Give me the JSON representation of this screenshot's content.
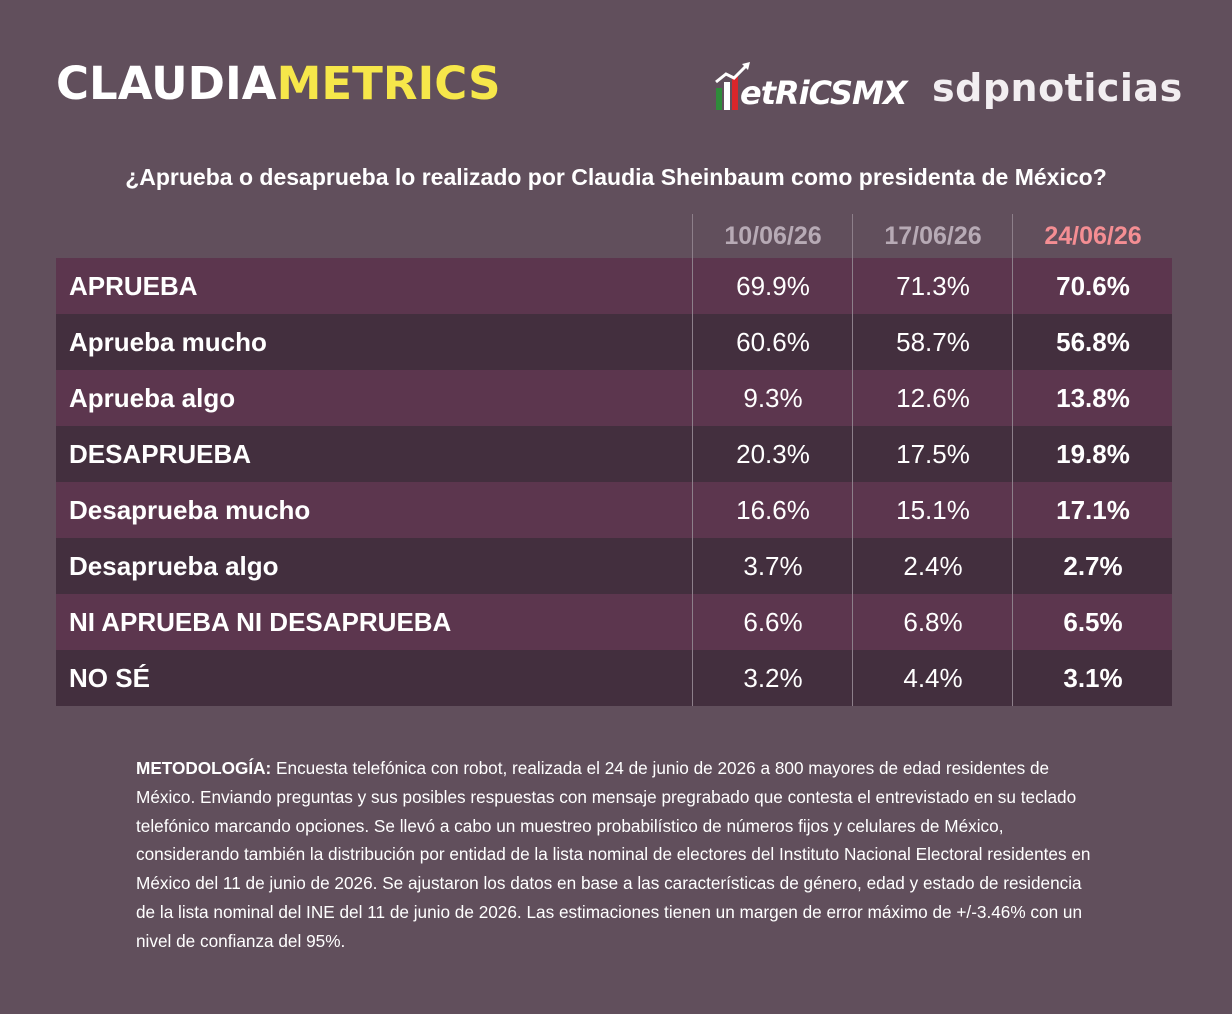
{
  "logos": {
    "claudiametrics_part1": "CLAUDIA",
    "claudiametrics_part2": "METRICS",
    "metricsmx": "etRiCSMX",
    "sdpnoticias": "sdpnoticias"
  },
  "colors": {
    "background": "#614f5c",
    "row_odd": "#5c364e",
    "row_even": "#432f3e",
    "brand_yellow": "#f6e74a",
    "latest_date": "#f48e93",
    "header_date": "#b7aab5"
  },
  "chart_data": {
    "type": "table",
    "title": "¿Aprueba o desaprueba lo realizado por Claudia Sheinbaum como presidenta de México?",
    "columns": [
      "10/06/26",
      "17/06/26",
      "24/06/26"
    ],
    "rows": [
      {
        "label": "APRUEBA",
        "values": [
          "69.9%",
          "71.3%",
          "70.6%"
        ]
      },
      {
        "label": "Aprueba mucho",
        "values": [
          "60.6%",
          "58.7%",
          "56.8%"
        ]
      },
      {
        "label": "Aprueba algo",
        "values": [
          "9.3%",
          "12.6%",
          "13.8%"
        ]
      },
      {
        "label": "DESAPRUEBA",
        "values": [
          "20.3%",
          "17.5%",
          "19.8%"
        ]
      },
      {
        "label": "Desaprueba mucho",
        "values": [
          "16.6%",
          "15.1%",
          "17.1%"
        ]
      },
      {
        "label": "Desaprueba algo",
        "values": [
          "3.7%",
          "2.4%",
          "2.7%"
        ]
      },
      {
        "label": "NI APRUEBA NI DESAPRUEBA",
        "values": [
          "6.6%",
          "6.8%",
          "6.5%"
        ]
      },
      {
        "label": "NO SÉ",
        "values": [
          "3.2%",
          "4.4%",
          "3.1%"
        ]
      }
    ]
  },
  "methodology": {
    "label": "METODOLOGÍA:",
    "text": " Encuesta telefónica con robot, realizada el 24 de junio de 2026 a 800 mayores de edad residentes de México. Enviando preguntas y sus posibles respuestas con mensaje pregrabado que contesta el entrevistado en su teclado telefónico marcando opciones. Se llevó a cabo un muestreo probabilístico de números fijos y celulares de México, considerando también la distribución por entidad de la lista nominal de electores del Instituto Nacional Electoral residentes en México del 11 de junio de 2026. Se ajustaron los datos en base a las características de género, edad y estado de residencia de la lista nominal del INE del 11 de junio de 2026. Las estimaciones tienen un margen de error máximo de +/-3.46% con un nivel de confianza del 95%."
  }
}
